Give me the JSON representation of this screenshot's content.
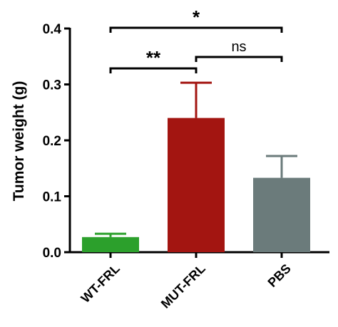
{
  "chart_data": {
    "type": "bar",
    "ylabel": "Tumor weight (g)",
    "ylim": [
      0,
      0.4
    ],
    "yticks": [
      "0.0",
      "0.1",
      "0.2",
      "0.3",
      "0.4"
    ],
    "categories": [
      "WT-FRL",
      "MUT-FRL",
      "PBS"
    ],
    "values": [
      0.027,
      0.24,
      0.133
    ],
    "errors": [
      0.006,
      0.063,
      0.039
    ],
    "colors": [
      "#2ca02c",
      "#a31511",
      "#6b7b7b"
    ],
    "significance": [
      {
        "from": 0,
        "to": 2,
        "label": "*"
      },
      {
        "from": 0,
        "to": 1,
        "label": "**"
      },
      {
        "from": 1,
        "to": 2,
        "label": "ns"
      }
    ]
  }
}
